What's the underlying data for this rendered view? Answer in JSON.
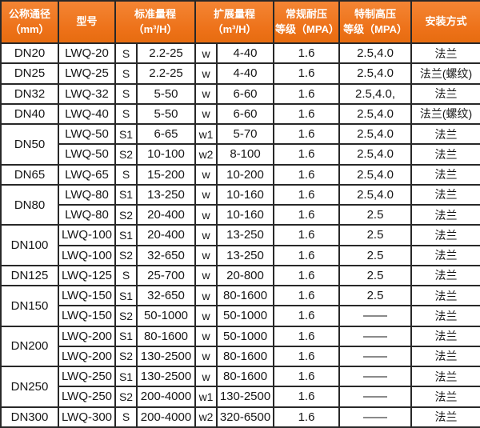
{
  "colors": {
    "header_bg": "#ed7118",
    "header_bg_light": "#f48534",
    "header_bg_dark": "#e66c10",
    "header_text": "#ffffff",
    "border": "#282828",
    "cell_text": "#161616",
    "row_bg": "#ffffff"
  },
  "table": {
    "headers": [
      {
        "label": "公称通径\n（mm）"
      },
      {
        "label": "型号"
      },
      {
        "label": "标准量程\n（m³/H）"
      },
      {
        "label": "扩展量程\n（m³/H）"
      },
      {
        "label": "常规耐压\n等级（MPA）"
      },
      {
        "label": "特制高压\n等级（MPA）"
      },
      {
        "label": "安装方式"
      }
    ],
    "rows": [
      {
        "dn": {
          "text": "DN20",
          "rowspan": 1
        },
        "model": "LWQ-20",
        "std_code": "S",
        "std_range": "2.2-25",
        "ext_code": "w",
        "ext_range": "4-40",
        "normal_pressure": "1.6",
        "high_pressure": "2.5,4.0",
        "install": "法兰"
      },
      {
        "dn": {
          "text": "DN25",
          "rowspan": 1
        },
        "model": "LWQ-25",
        "std_code": "S",
        "std_range": "2.2-25",
        "ext_code": "w",
        "ext_range": "4-40",
        "normal_pressure": "1.6",
        "high_pressure": "2.5,4.0",
        "install": "法兰(螺纹)"
      },
      {
        "dn": {
          "text": "DN32",
          "rowspan": 1
        },
        "model": "LWQ-32",
        "std_code": "S",
        "std_range": "5-50",
        "ext_code": "w",
        "ext_range": "6-60",
        "normal_pressure": "1.6",
        "high_pressure": "2.5,4.0,",
        "install": "法兰"
      },
      {
        "dn": {
          "text": "DN40",
          "rowspan": 1
        },
        "model": "LWQ-40",
        "std_code": "S",
        "std_range": "5-50",
        "ext_code": "w",
        "ext_range": "6-60",
        "normal_pressure": "1.6",
        "high_pressure": "2.5,4.0",
        "install": "法兰(螺纹)"
      },
      {
        "dn": {
          "text": "DN50",
          "rowspan": 2
        },
        "model": "LWQ-50",
        "std_code": "S1",
        "std_range": "6-65",
        "ext_code": "w1",
        "ext_range": "5-70",
        "normal_pressure": "1.6",
        "high_pressure": "2.5,4.0",
        "install": "法兰"
      },
      {
        "dn": null,
        "model": "LWQ-50",
        "std_code": "S2",
        "std_range": "10-100",
        "ext_code": "w2",
        "ext_range": "8-100",
        "normal_pressure": "1.6",
        "high_pressure": "2.5,4.0",
        "install": "法兰"
      },
      {
        "dn": {
          "text": "DN65",
          "rowspan": 1
        },
        "model": "LWQ-65",
        "std_code": "S",
        "std_range": "15-200",
        "ext_code": "w",
        "ext_range": "10-200",
        "normal_pressure": "1.6",
        "high_pressure": "2.5,4.0",
        "install": "法兰"
      },
      {
        "dn": {
          "text": "DN80",
          "rowspan": 2
        },
        "model": "LWQ-80",
        "std_code": "S1",
        "std_range": "13-250",
        "ext_code": "w",
        "ext_range": "10-160",
        "normal_pressure": "1.6",
        "high_pressure": "2.5,4.0",
        "install": "法兰"
      },
      {
        "dn": null,
        "model": "LWQ-80",
        "std_code": "S2",
        "std_range": "20-400",
        "ext_code": "w",
        "ext_range": "10-160",
        "normal_pressure": "1.6",
        "high_pressure": "2.5",
        "install": "法兰"
      },
      {
        "dn": {
          "text": "DN100",
          "rowspan": 2
        },
        "model": "LWQ-100",
        "std_code": "S1",
        "std_range": "20-400",
        "ext_code": "w",
        "ext_range": "13-250",
        "normal_pressure": "1.6",
        "high_pressure": "2.5",
        "install": "法兰"
      },
      {
        "dn": null,
        "model": "LWQ-100",
        "std_code": "S2",
        "std_range": "32-650",
        "ext_code": "w",
        "ext_range": "13-250",
        "normal_pressure": "1.6",
        "high_pressure": "2.5",
        "install": "法兰"
      },
      {
        "dn": {
          "text": "DN125",
          "rowspan": 1
        },
        "model": "LWQ-125",
        "std_code": "S",
        "std_range": "25-700",
        "ext_code": "w",
        "ext_range": "20-800",
        "normal_pressure": "1.6",
        "high_pressure": "2.5",
        "install": "法兰"
      },
      {
        "dn": {
          "text": "DN150",
          "rowspan": 2
        },
        "model": "LWQ-150",
        "std_code": "S1",
        "std_range": "32-650",
        "ext_code": "w",
        "ext_range": "80-1600",
        "normal_pressure": "1.6",
        "high_pressure": "2.5",
        "install": "法兰"
      },
      {
        "dn": null,
        "model": "LWQ-150",
        "std_code": "S2",
        "std_range": "50-1000",
        "ext_code": "w",
        "ext_range": "50-1000",
        "normal_pressure": "1.6",
        "high_pressure": "——",
        "install": "法兰"
      },
      {
        "dn": {
          "text": "DN200",
          "rowspan": 2
        },
        "model": "LWQ-200",
        "std_code": "S1",
        "std_range": "80-1600",
        "ext_code": "w",
        "ext_range": "50-1000",
        "normal_pressure": "1.6",
        "high_pressure": "——",
        "install": "法兰"
      },
      {
        "dn": null,
        "model": "LWQ-200",
        "std_code": "S2",
        "std_range": "130-2500",
        "ext_code": "w",
        "ext_range": "80-1600",
        "normal_pressure": "1.6",
        "high_pressure": "——",
        "install": "法兰"
      },
      {
        "dn": {
          "text": "DN250",
          "rowspan": 2
        },
        "model": "LWQ-250",
        "std_code": "S1",
        "std_range": "130-2500",
        "ext_code": "w",
        "ext_range": "80-1600",
        "normal_pressure": "1.6",
        "high_pressure": "——",
        "install": "法兰"
      },
      {
        "dn": null,
        "model": "LWQ-250",
        "std_code": "S2",
        "std_range": "200-4000",
        "ext_code": "w1",
        "ext_range": "130-2500",
        "normal_pressure": "1.6",
        "high_pressure": "——",
        "install": "法兰"
      },
      {
        "dn": {
          "text": "DN300",
          "rowspan": 1
        },
        "model": "LWQ-300",
        "std_code": "S",
        "std_range": "200-4000",
        "ext_code": "w2",
        "ext_range": "320-6500",
        "normal_pressure": "1.6",
        "high_pressure": "——",
        "install": "法兰"
      }
    ]
  }
}
